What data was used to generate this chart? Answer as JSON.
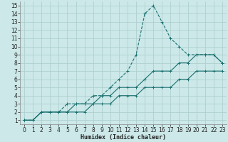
{
  "bg_color": "#cce8e8",
  "grid_color": "#aacccc",
  "line_color": "#1a7070",
  "xlim": [
    -0.5,
    23.5
  ],
  "ylim": [
    0.5,
    15.5
  ],
  "xticks": [
    0,
    1,
    2,
    3,
    4,
    5,
    6,
    7,
    8,
    9,
    10,
    11,
    12,
    13,
    14,
    15,
    16,
    17,
    18,
    19,
    20,
    21,
    22,
    23
  ],
  "yticks": [
    1,
    2,
    3,
    4,
    5,
    6,
    7,
    8,
    9,
    10,
    11,
    12,
    13,
    14,
    15
  ],
  "xlabel": "Humidex (Indice chaleur)",
  "xlabel_fontsize": 6.0,
  "tick_fontsize": 5.5,
  "curve1_x": [
    0,
    1,
    2,
    3,
    4,
    5,
    6,
    7,
    8,
    9,
    10,
    11,
    12,
    13,
    14,
    15,
    16,
    17,
    18,
    19,
    20,
    21,
    22,
    23
  ],
  "curve1_y": [
    1,
    1,
    2,
    2,
    2,
    3,
    3,
    3,
    4,
    4,
    5,
    6,
    7,
    9,
    14,
    15,
    13,
    11,
    10,
    9,
    9,
    9,
    9,
    8
  ],
  "curve2_x": [
    0,
    1,
    2,
    3,
    4,
    5,
    6,
    7,
    8,
    9,
    10,
    11,
    12,
    13,
    14,
    15,
    16,
    17,
    18,
    19,
    20,
    21,
    22,
    23
  ],
  "curve2_y": [
    1,
    1,
    2,
    2,
    2,
    2,
    3,
    3,
    3,
    4,
    4,
    5,
    5,
    5,
    6,
    7,
    7,
    7,
    8,
    8,
    9,
    9,
    9,
    8
  ],
  "curve3_x": [
    0,
    1,
    2,
    3,
    4,
    5,
    6,
    7,
    8,
    9,
    10,
    11,
    12,
    13,
    14,
    15,
    16,
    17,
    18,
    19,
    20,
    21,
    22,
    23
  ],
  "curve3_y": [
    1,
    1,
    2,
    2,
    2,
    2,
    2,
    2,
    3,
    3,
    3,
    4,
    4,
    4,
    5,
    5,
    5,
    5,
    6,
    6,
    7,
    7,
    7,
    7
  ]
}
